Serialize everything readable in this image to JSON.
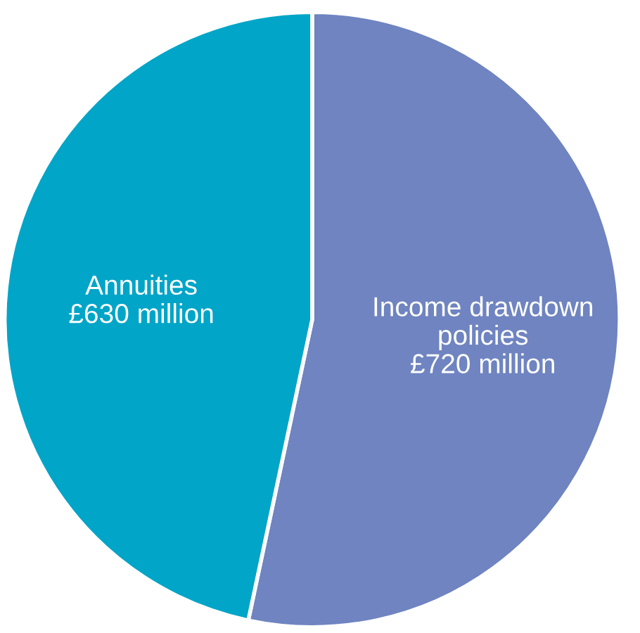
{
  "chart_data": {
    "type": "pie",
    "categories": [
      "Income drawdown policies",
      "Annuities"
    ],
    "values": [
      720,
      630
    ],
    "value_labels": [
      "£720 million",
      "£630 million"
    ],
    "colors": [
      "#6f84c0",
      "#00a5c7"
    ]
  }
}
